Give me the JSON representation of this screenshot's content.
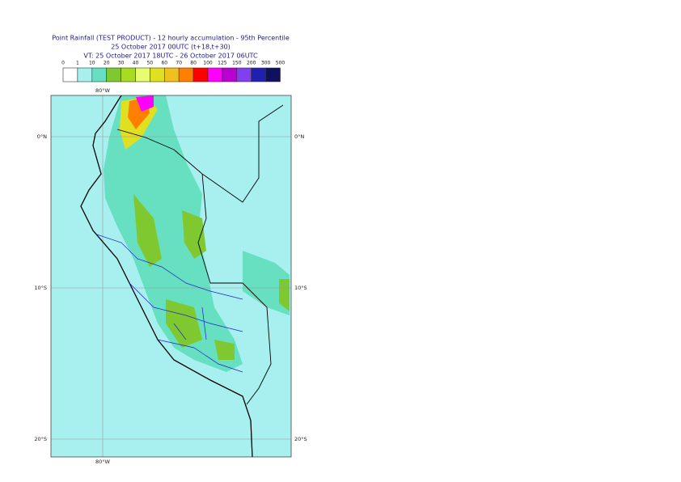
{
  "title": {
    "line1": "Point Rainfall (TEST PRODUCT) - 12 hourly accumulation - 95th Percentile",
    "line2": "25 October 2017 00UTC (t+18,t+30)",
    "line3": "VT: 25 October 2017 18UTC - 26 October 2017 06UTC"
  },
  "legend": {
    "levels": [
      0,
      1,
      10,
      20,
      30,
      40,
      50,
      60,
      70,
      80,
      100,
      125,
      150,
      200,
      300,
      500
    ],
    "colors": [
      "#ffffff",
      "#a8f0f0",
      "#66e0c0",
      "#80c830",
      "#a8dc20",
      "#e8fc70",
      "#e0e020",
      "#f0c020",
      "#ff8000",
      "#ff0000",
      "#ff00ff",
      "#b800d0",
      "#8040f0",
      "#2020b0",
      "#101060"
    ]
  },
  "map": {
    "lon_labels": [
      "80°W",
      "80°W"
    ],
    "lat_labels": [
      "0°N",
      "10°S",
      "20°S"
    ]
  }
}
